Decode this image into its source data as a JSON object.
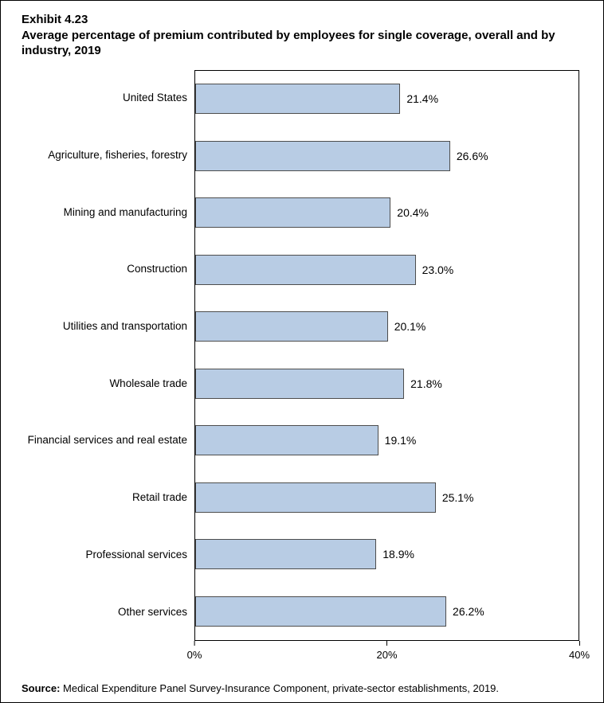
{
  "header": {
    "exhibit": "Exhibit 4.23",
    "title": "Average percentage of premium contributed by employees for single coverage, overall and by industry, 2019"
  },
  "chart_data": {
    "type": "bar",
    "orientation": "horizontal",
    "title": "Average percentage of premium contributed by employees for single coverage, overall and by industry, 2019",
    "categories": [
      "United States",
      "Agriculture, fisheries, forestry",
      "Mining and manufacturing",
      "Construction",
      "Utilities and transportation",
      "Wholesale trade",
      "Financial services and real estate",
      "Retail trade",
      "Professional services",
      "Other services"
    ],
    "values": [
      21.4,
      26.6,
      20.4,
      23.0,
      20.1,
      21.8,
      19.1,
      25.1,
      18.9,
      26.2
    ],
    "value_labels": [
      "21.4%",
      "26.6%",
      "20.4%",
      "23.0%",
      "20.1%",
      "21.8%",
      "19.1%",
      "25.1%",
      "18.9%",
      "26.2%"
    ],
    "xlabel": "",
    "ylabel": "",
    "xlim": [
      0,
      40
    ],
    "xticks": [
      {
        "value": 0,
        "label": "0%"
      },
      {
        "value": 20,
        "label": "20%"
      },
      {
        "value": 40,
        "label": "40%"
      }
    ],
    "grid": false,
    "legend": null,
    "bar_color": "#b8cce4",
    "bar_border_color": "#4d4d4d"
  },
  "footer": {
    "source_label": "Source:",
    "source_text": " Medical Expenditure Panel Survey-Insurance Component, private-sector establishments, 2019."
  }
}
